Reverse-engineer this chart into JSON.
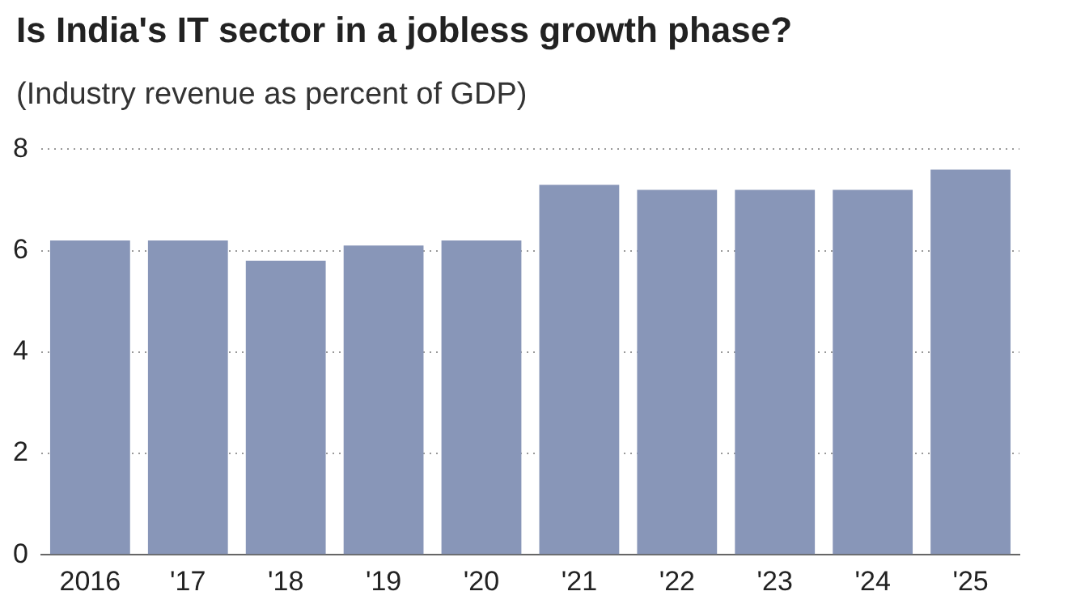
{
  "chart_data": {
    "type": "bar",
    "title": "Is India's IT sector in a jobless growth phase?",
    "subtitle": "(Industry revenue as percent of GDP)",
    "categories": [
      "2016",
      "'17",
      "'18",
      "'19",
      "'20",
      "'21",
      "'22",
      "'23",
      "'24",
      "'25"
    ],
    "values": [
      6.2,
      6.2,
      5.8,
      6.1,
      6.2,
      7.3,
      7.2,
      7.2,
      7.2,
      7.6
    ],
    "color": "#8896b8",
    "ylim": [
      0,
      8
    ],
    "yticks": [
      0,
      2,
      4,
      6,
      8
    ],
    "grid": "y"
  }
}
